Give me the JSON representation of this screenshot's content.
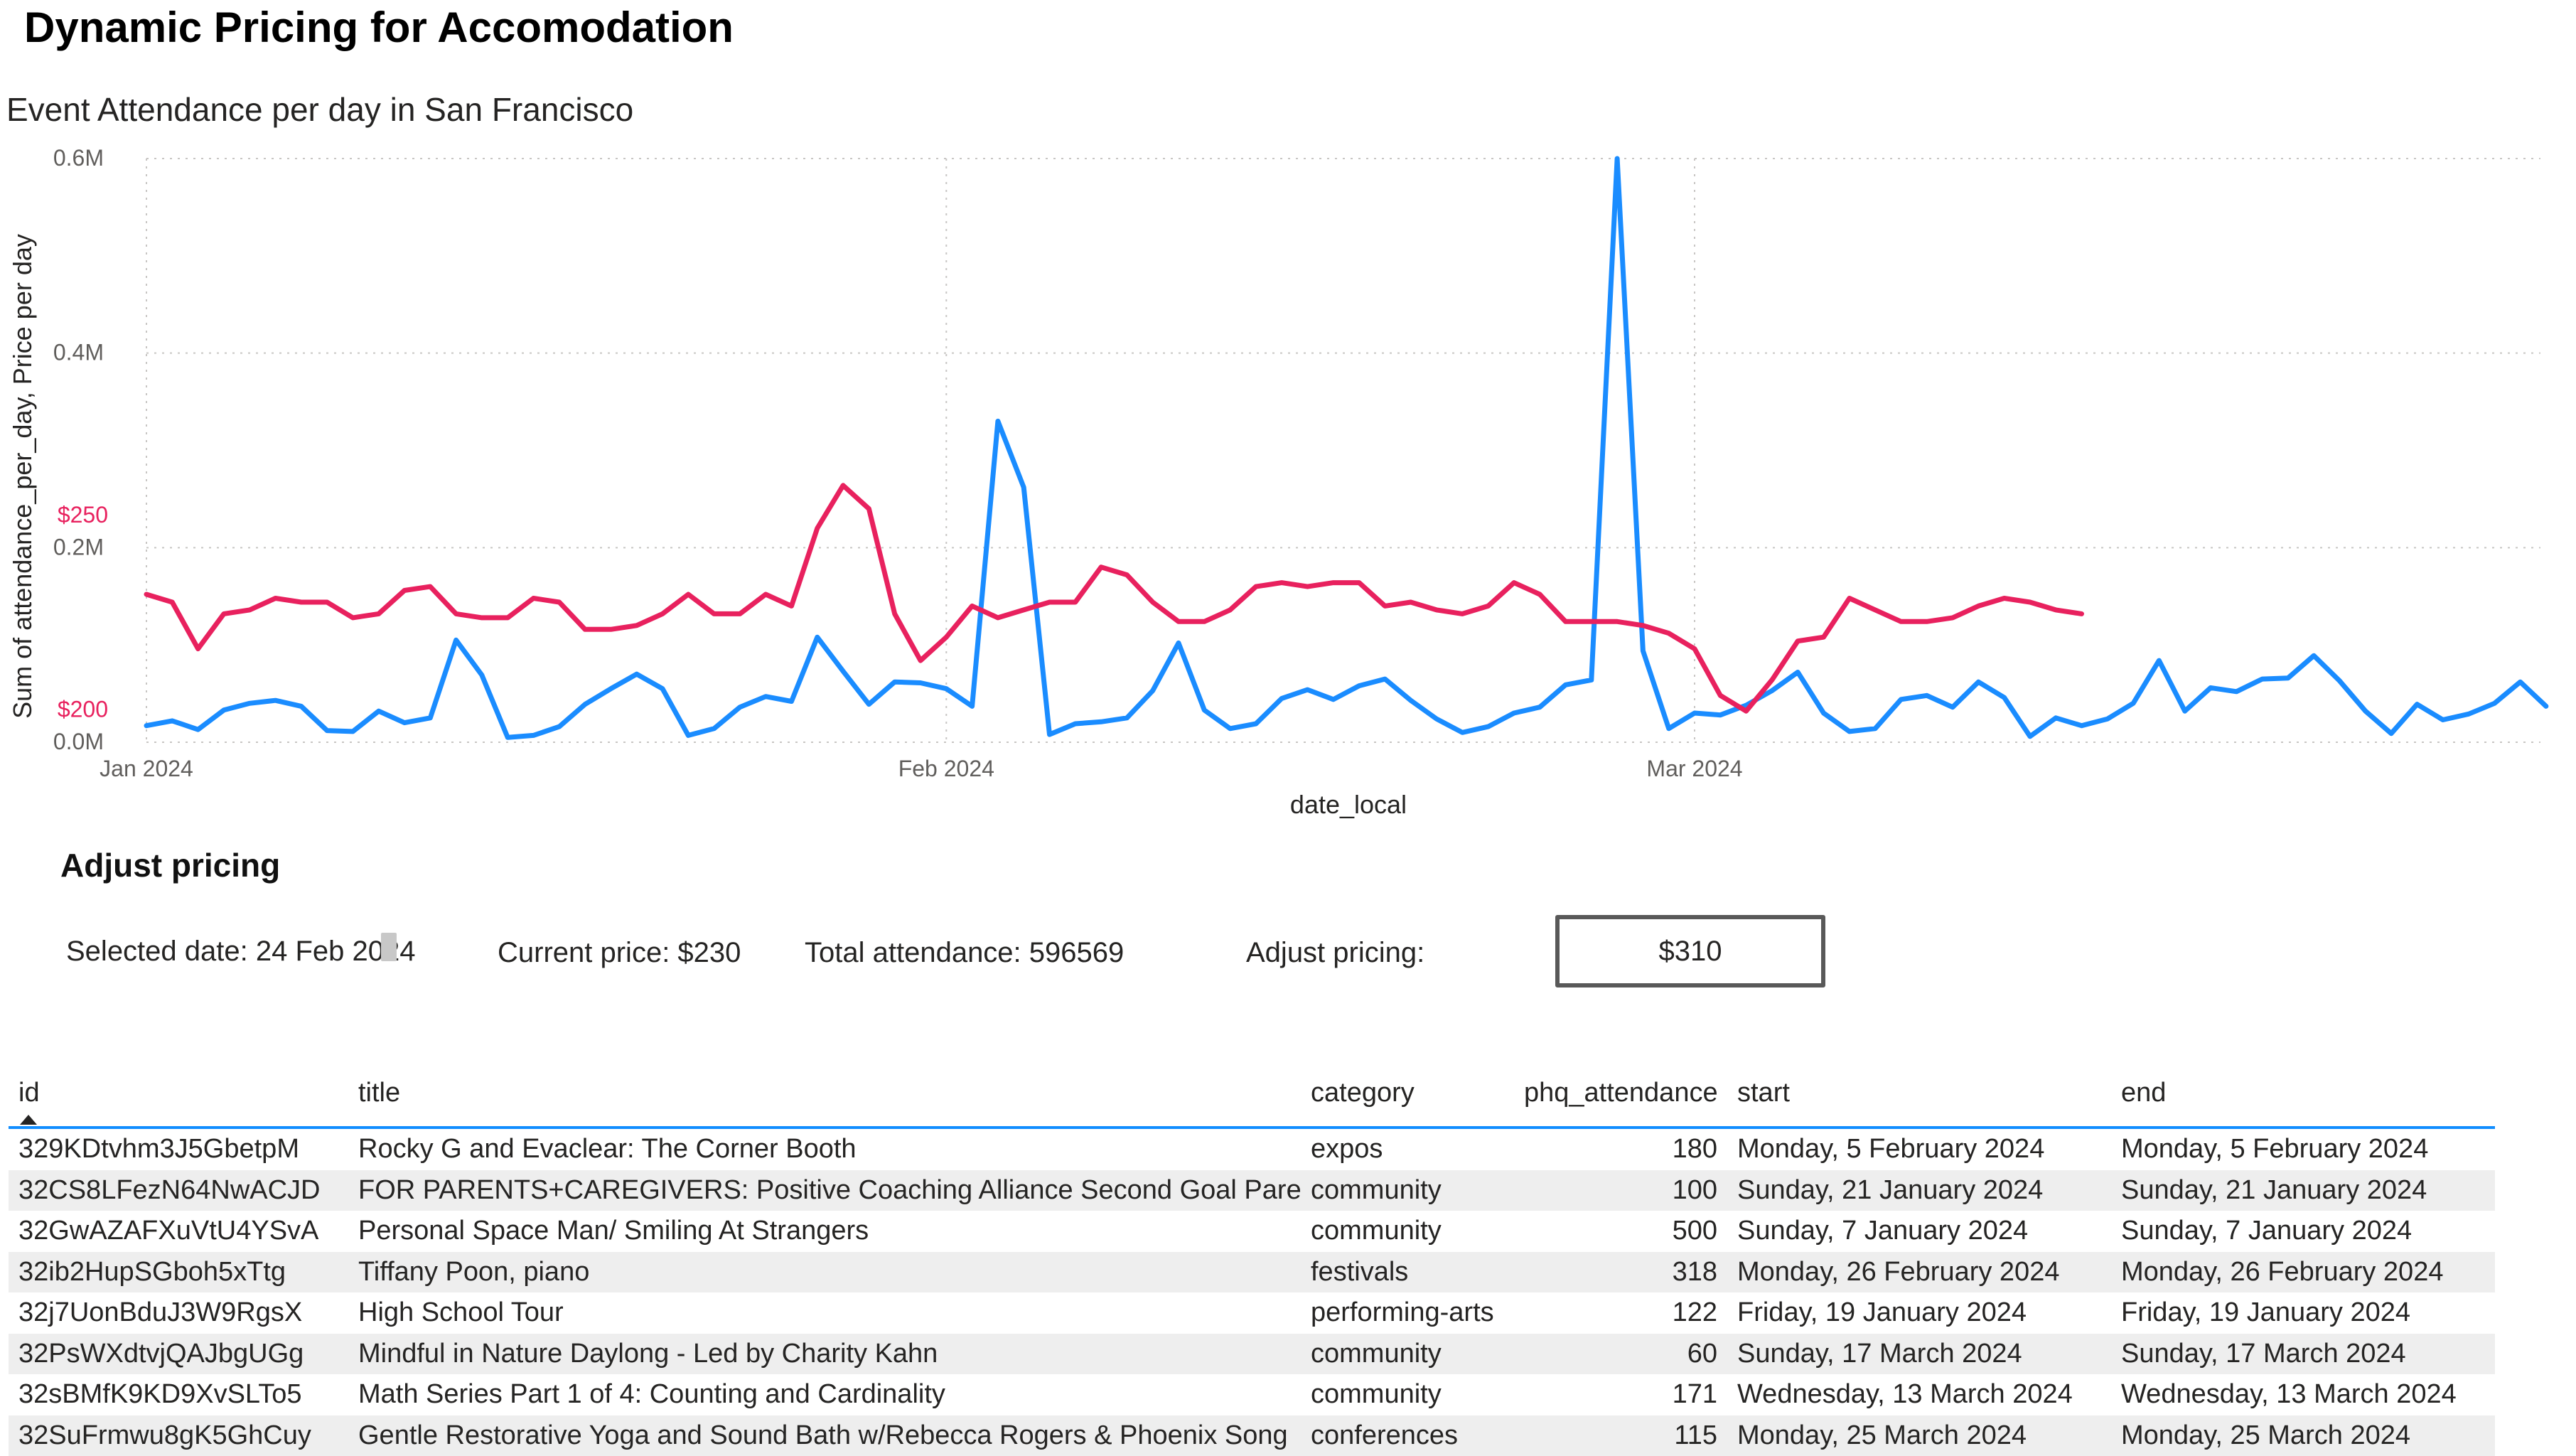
{
  "page": {
    "title": "Dynamic Pricing for Accomodation"
  },
  "chart": {
    "title": "Event Attendance per day in San Francisco",
    "y_axis_title": "Sum of attendance_per_day, Price per day",
    "x_axis_title": "date_local",
    "colors": {
      "attendance": "#1a8cff",
      "price": "#e8215e",
      "grid": "#c8c6c4"
    }
  },
  "chart_data": {
    "type": "line",
    "title": "Event Attendance per day in San Francisco",
    "xlabel": "date_local",
    "ylabel": "Sum of attendance_per_day, Price per day",
    "x_ticks": [
      "Jan 2024",
      "Feb 2024",
      "Mar 2024"
    ],
    "y_ticks": [
      "0.0M",
      "0.2M",
      "0.4M",
      "0.6M"
    ],
    "y2_ticks": [
      "$200",
      "$250"
    ],
    "ylim": [
      0,
      600000
    ],
    "y2_scale": {
      "price_at_0": 195,
      "price_per_0_2M": 50
    },
    "start_day_index_for_jan1": 0,
    "mar1_day_index": 60,
    "grid": true,
    "series": [
      {
        "name": "Sum of attendance_per_day",
        "color": "#1a8cff",
        "values": [
          17000,
          22000,
          13000,
          33000,
          40000,
          43000,
          37000,
          12000,
          11000,
          32000,
          20000,
          25000,
          105000,
          69000,
          5000,
          7000,
          16000,
          39000,
          55000,
          70000,
          55000,
          7000,
          14000,
          36000,
          47000,
          42000,
          108000,
          73000,
          39000,
          62000,
          61000,
          55000,
          37000,
          330000,
          262000,
          8000,
          19000,
          21000,
          25000,
          53000,
          102000,
          33000,
          14000,
          19000,
          45000,
          54000,
          44000,
          58000,
          65000,
          43000,
          24000,
          10000,
          16000,
          30000,
          36000,
          59000,
          64000,
          600000,
          94000,
          14000,
          30000,
          28000,
          38000,
          53000,
          72000,
          30000,
          11000,
          14000,
          44000,
          48000,
          36000,
          62000,
          46000,
          6000,
          25000,
          17000,
          24000,
          40000,
          84000,
          32000,
          56000,
          52000,
          65000,
          66000,
          89000,
          63000,
          32000,
          9000,
          39000,
          23000,
          29000,
          40000,
          62000,
          37000
        ]
      },
      {
        "name": "Price per day",
        "color": "#e8215e",
        "values": [
          233,
          231,
          219,
          228,
          229,
          232,
          231,
          231,
          227,
          228,
          234,
          235,
          228,
          227,
          227,
          232,
          231,
          224,
          224,
          225,
          228,
          233,
          228,
          228,
          233,
          230,
          250,
          261,
          255,
          228,
          216,
          222,
          230,
          227,
          229,
          231,
          231,
          240,
          238,
          231,
          226,
          226,
          229,
          235,
          236,
          235,
          236,
          236,
          230,
          231,
          229,
          228,
          230,
          236,
          233,
          226,
          226,
          226,
          225,
          223,
          219,
          207,
          203,
          211,
          221,
          222,
          232,
          229,
          226,
          226,
          227,
          230,
          232,
          231,
          229,
          228
        ]
      }
    ]
  },
  "adjust": {
    "heading": "Adjust pricing",
    "selected_date": "Selected date: 24 Feb 2024",
    "current_price": "Current price: $230",
    "total_attendance": "Total attendance: 596569",
    "adjust_label": "Adjust pricing:",
    "input_value": "$310"
  },
  "table": {
    "columns": [
      "id",
      "title",
      "category",
      "phq_attendance",
      "start",
      "end"
    ],
    "rows": [
      [
        "329KDtvhm3J5GbetpM",
        "Rocky G and Evaclear: The Corner Booth",
        "expos",
        "180",
        "Monday, 5 February 2024",
        "Monday, 5 February 2024"
      ],
      [
        "32CS8LFezN64NwACJD",
        "FOR PARENTS+CAREGIVERS: Positive Coaching Alliance Second Goal Parent",
        "community",
        "100",
        "Sunday, 21 January 2024",
        "Sunday, 21 January 2024"
      ],
      [
        "32GwAZAFXuVtU4YSvA",
        "Personal Space Man/ Smiling At Strangers",
        "community",
        "500",
        "Sunday, 7 January 2024",
        "Sunday, 7 January 2024"
      ],
      [
        "32ib2HupSGboh5xTtg",
        "Tiffany Poon, piano",
        "festivals",
        "318",
        "Monday, 26 February 2024",
        "Monday, 26 February 2024"
      ],
      [
        "32j7UonBduJ3W9RgsX",
        "High School Tour",
        "performing-arts",
        "122",
        "Friday, 19 January 2024",
        "Friday, 19 January 2024"
      ],
      [
        "32PsWXdtvjQAJbgUGg",
        "Mindful in Nature Daylong - Led by Charity Kahn",
        "community",
        "60",
        "Sunday, 17 March 2024",
        "Sunday, 17 March 2024"
      ],
      [
        "32sBMfK9KD9XvSLTo5",
        "Math Series Part 1 of 4: Counting and Cardinality",
        "community",
        "171",
        "Wednesday, 13 March 2024",
        "Wednesday, 13 March 2024"
      ],
      [
        "32SuFrmwu8gK5GhCuy",
        "Gentle Restorative Yoga and Sound Bath w/Rebecca Rogers & Phoenix Song",
        "conferences",
        "115",
        "Monday, 25 March 2024",
        "Monday, 25 March 2024"
      ]
    ]
  }
}
